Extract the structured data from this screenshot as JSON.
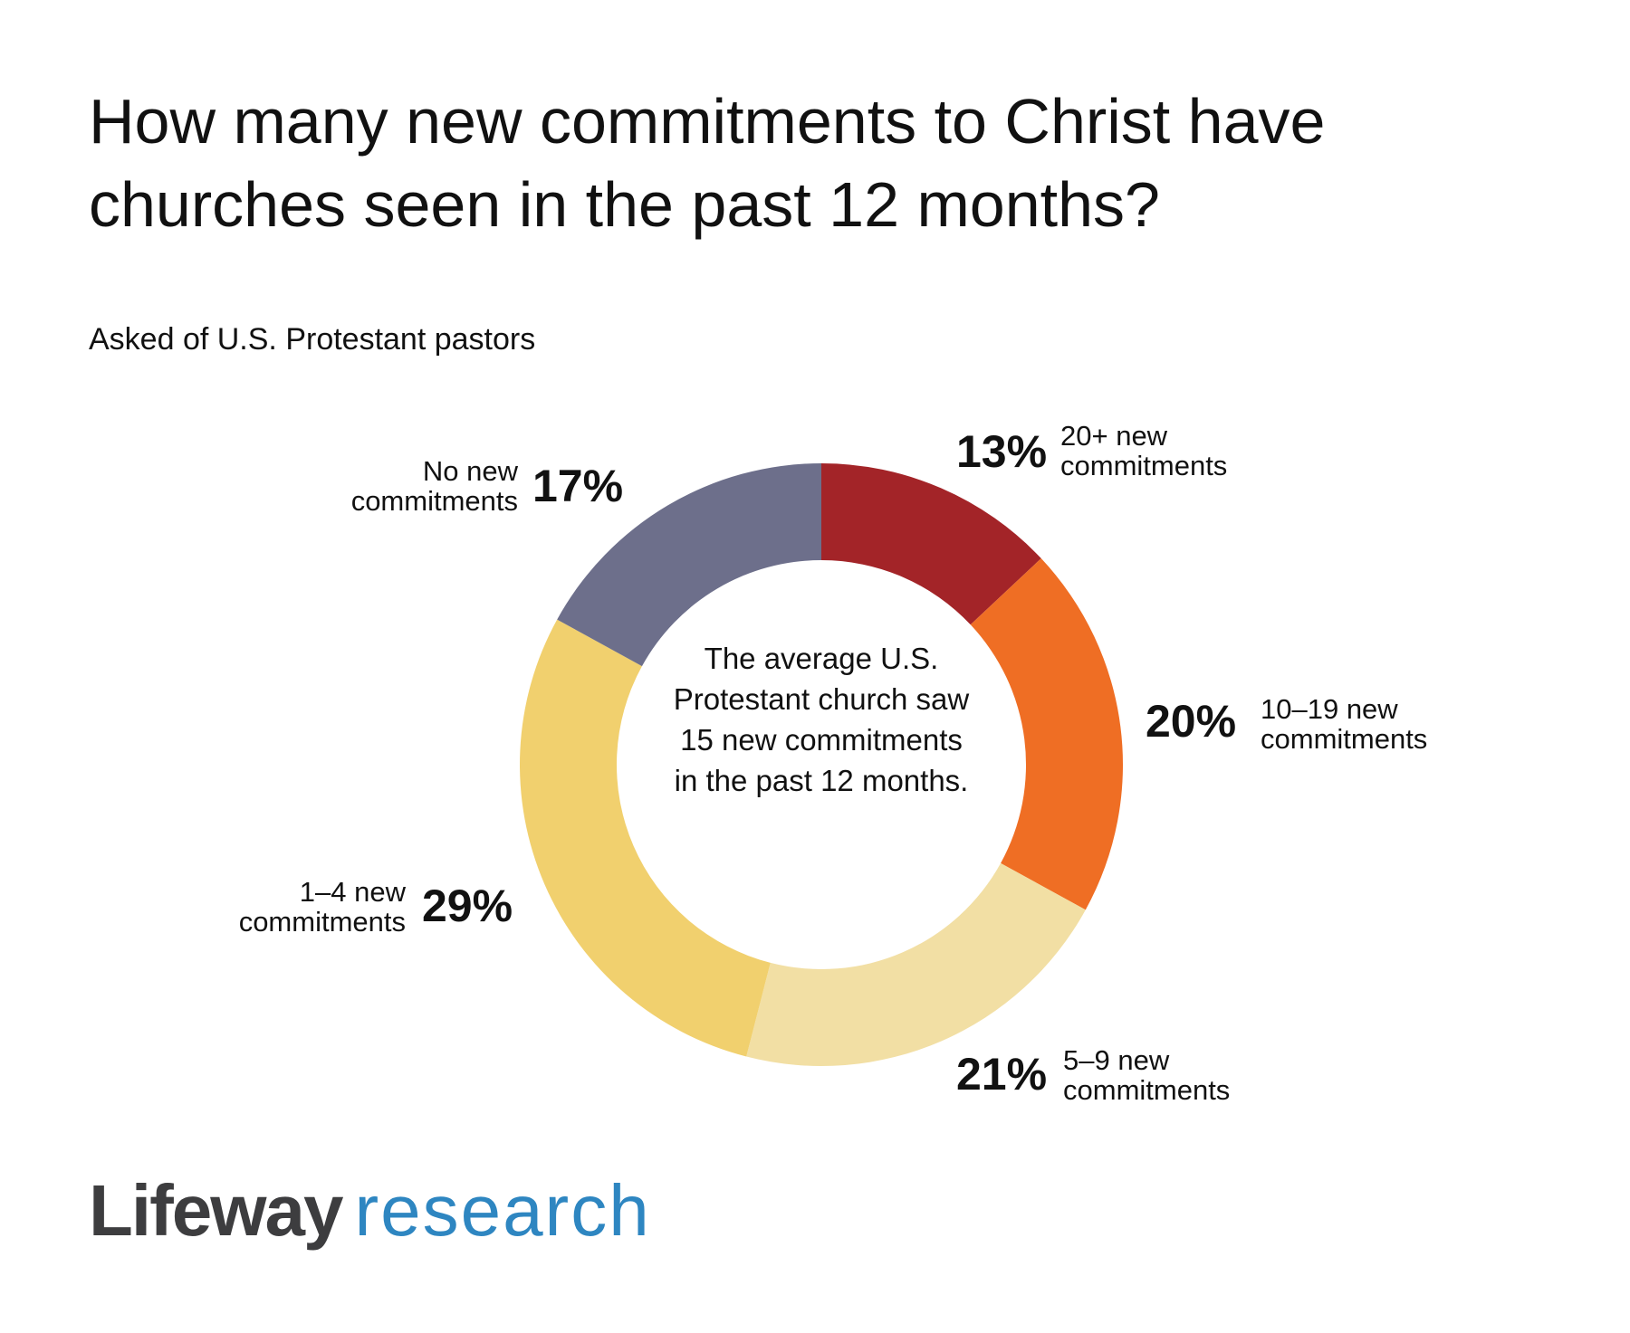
{
  "chart_data": {
    "type": "donut",
    "title": "How many new commitments to Christ have churches seen in the past 12 months?",
    "subtitle": "Asked of U.S. Protestant pastors",
    "categories": [
      "20+ new commitments",
      "10–19 new commitments",
      "5–9 new commitments",
      "1–4 new commitments",
      "No new commitments"
    ],
    "values": [
      13,
      20,
      21,
      29,
      17
    ],
    "value_labels": [
      "13%",
      "20%",
      "21%",
      "29%",
      "17%"
    ],
    "colors": [
      "#a32428",
      "#ef6e24",
      "#f2dfa4",
      "#f1d06e",
      "#6d6f8b"
    ],
    "center_annotation": "The average U.S. Protestant church saw 15 new commitments in the past 12 months.",
    "logo": {
      "brand": "Lifeway",
      "sub": "research"
    }
  }
}
